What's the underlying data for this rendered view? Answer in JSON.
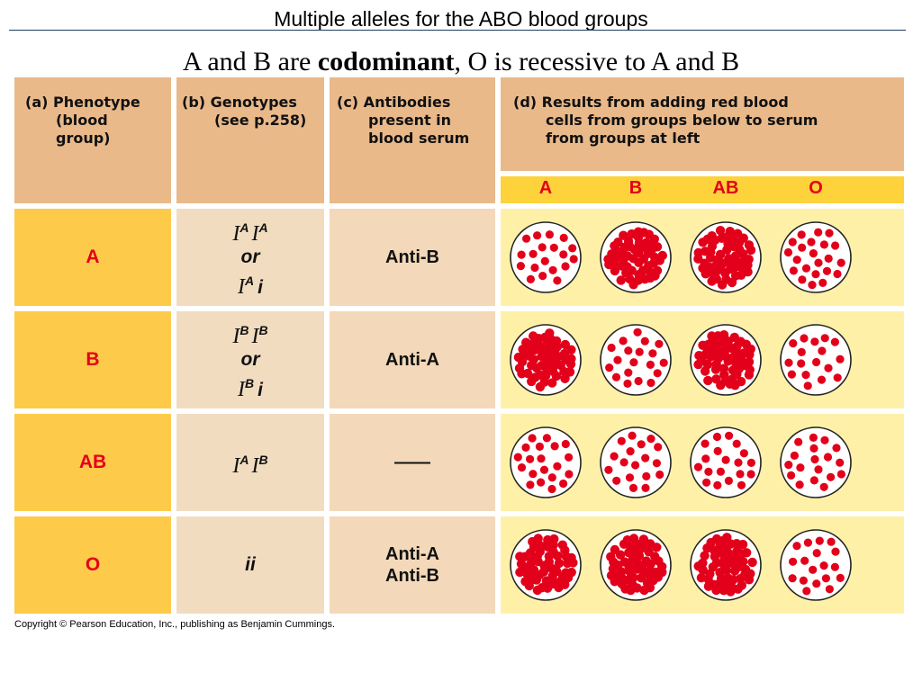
{
  "slide": {
    "title": "Multiple alleles for the ABO blood groups",
    "subtitle_pre": "A and B are ",
    "subtitle_bold": "codominant",
    "subtitle_post": ", O is recessive to A and B"
  },
  "headers": {
    "phenotype": [
      "(a) Phenotype",
      "(blood",
      "group)"
    ],
    "genotypes": [
      "(b) Genotypes",
      "(see p.258)"
    ],
    "antibodies": [
      "(c) Antibodies",
      "present in",
      "blood serum"
    ],
    "results": [
      "(d) Results from adding red blood",
      "cells from groups below to serum",
      "from groups at left"
    ]
  },
  "result_columns": [
    "A",
    "B",
    "AB",
    "O"
  ],
  "rows": [
    {
      "phenotype": "A",
      "genotype": {
        "g1_base": "I",
        "g1_sup": "A",
        "g2_base": "I",
        "g2_sup": "A",
        "or": "or",
        "g3_base": "I",
        "g3_sup": "A",
        "g4": "i"
      },
      "antibodies": [
        "Anti-B"
      ],
      "clumped": [
        false,
        true,
        true,
        false
      ]
    },
    {
      "phenotype": "B",
      "genotype": {
        "g1_base": "I",
        "g1_sup": "B",
        "g2_base": "I",
        "g2_sup": "B",
        "or": "or",
        "g3_base": "I",
        "g3_sup": "B",
        "g4": "i"
      },
      "antibodies": [
        "Anti-A"
      ],
      "clumped": [
        true,
        false,
        true,
        false
      ]
    },
    {
      "phenotype": "AB",
      "genotype": {
        "g1_base": "I",
        "g1_sup": "A",
        "g2_base": "I",
        "g2_sup": "B"
      },
      "antibodies": [
        "——"
      ],
      "clumped": [
        false,
        false,
        false,
        false
      ]
    },
    {
      "phenotype": "O",
      "genotype": {
        "ii": "ii"
      },
      "antibodies": [
        "Anti-A",
        "Anti-B"
      ],
      "clumped": [
        true,
        true,
        true,
        false
      ]
    }
  ],
  "copyright": "Copyright © Pearson Education, Inc., publishing as Benjamin Cummings.",
  "colors": {
    "header_bg": "#e9b98a",
    "phenotype_bg": "#fdca4a",
    "genotype_bg": "#f2dcc0",
    "antibody_bg": "#f3d9b9",
    "results_bg": "#fff0a8",
    "results_colhead_bg": "#fdd23a",
    "cell_red": "#e3001b",
    "phenotype_text": "#e3001b"
  }
}
